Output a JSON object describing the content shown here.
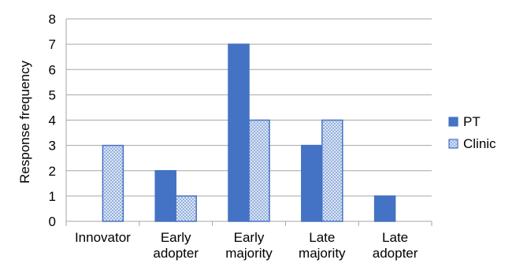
{
  "chart_data": {
    "type": "bar",
    "categories": [
      [
        "Innovator"
      ],
      [
        "Early",
        "adopter"
      ],
      [
        "Early",
        "majority"
      ],
      [
        "Late",
        "majority"
      ],
      [
        "Late",
        "adopter"
      ]
    ],
    "series": [
      {
        "name": "PT",
        "values": [
          0,
          2,
          7,
          3,
          1
        ],
        "color": "#4472c4",
        "pattern": "solid"
      },
      {
        "name": "Clinic",
        "values": [
          3,
          1,
          4,
          4,
          0
        ],
        "color": "#4472c4",
        "pattern": "dotted"
      }
    ],
    "ylabel": "Response frequency",
    "xlabel": "",
    "ylim": [
      0,
      8
    ],
    "yticks": [
      0,
      1,
      2,
      3,
      4,
      5,
      6,
      7,
      8
    ],
    "grid": true,
    "legend": "right"
  }
}
